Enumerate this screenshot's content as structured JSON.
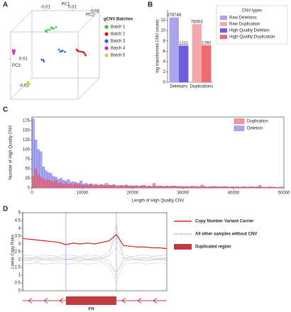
{
  "chart_data": [
    {
      "type": "scatter3d",
      "label": "A",
      "xlabel": "PC1",
      "ylabel": "PC2",
      "zlabel": "PC3",
      "legend_title": "gCNV Batches",
      "xlim": [
        -0.02,
        0.03
      ],
      "ylim": [
        -0.02,
        0.03
      ],
      "zlim": [
        -0.02,
        0.03
      ],
      "xticks": [
        -0.01,
        0.01
      ],
      "yticks": [
        0.02
      ],
      "zticks": [
        -0.01,
        0.01
      ],
      "series": [
        {
          "name": "Batch 1",
          "color": "#22cc33",
          "x": [
            -0.002,
            0,
            0.002,
            0.004,
            0.006,
            0.001,
            0.003,
            -0.001
          ],
          "y": [
            0.005,
            0.004,
            0.006,
            0.005,
            0.004,
            0.006,
            0.005,
            0.004
          ],
          "z": [
            0.023,
            0.024,
            0.025,
            0.0245,
            0.026,
            0.0235,
            0.025,
            0.0225
          ]
        },
        {
          "name": "Batch 2",
          "color": "#dd1111",
          "x": [
            0.021,
            0.023,
            0.025,
            0.027,
            0.022,
            0.026,
            0.024,
            0.028
          ],
          "y": [
            0.005,
            0.004,
            0.006,
            0.005,
            0.004,
            0.006,
            0.005,
            0.004
          ],
          "z": [
            0.009,
            0.008,
            0.007,
            0.006,
            0.0085,
            0.0065,
            0.0075,
            0.005
          ]
        },
        {
          "name": "Batch 3",
          "color": "#1f5fe0",
          "x": [
            0.008,
            0.01,
            0.012,
            0.009,
            0.011,
            -0.005,
            -0.004,
            -0.003
          ],
          "y": [
            0.005,
            0.004,
            0.006,
            0.005,
            0.004,
            0.005,
            0.006,
            0.004
          ],
          "z": [
            0.009,
            0.008,
            0.007,
            0.0075,
            0.0085,
            0.0015,
            0.001,
            0.0005
          ]
        },
        {
          "name": "Batch 4",
          "color": "#cc22cc",
          "x": [
            -0.019,
            -0.0185,
            -0.018,
            -0.019,
            -0.0175,
            -0.0185
          ],
          "y": [
            -0.018,
            -0.018,
            -0.018,
            -0.018,
            -0.018,
            -0.018
          ],
          "z": [
            0.016,
            0.015,
            0.014,
            0.0145,
            0.0155,
            0.013
          ]
        },
        {
          "name": "Batch 5",
          "color": "#b8e020",
          "x": [
            -0.015,
            -0.0145,
            -0.014,
            -0.0155,
            -0.0148
          ],
          "y": [
            0.005,
            0.005,
            0.005,
            0.005,
            0.005
          ],
          "z": [
            -0.015,
            -0.016,
            -0.017,
            -0.0155,
            -0.0165
          ]
        }
      ]
    },
    {
      "type": "bar",
      "label": "B",
      "ylabel": "log transformed CNV counts",
      "legend_title": "CNV types",
      "categories": [
        "Deletions",
        "Duplications"
      ],
      "ylim": [
        0,
        14
      ],
      "yticks": [
        0,
        2,
        4,
        6,
        8,
        10,
        12
      ],
      "series": [
        {
          "name": "Raw Deletions",
          "color": "#aaa4ee",
          "values": [
            12.54,
            null
          ],
          "value_labels": [
            "279749",
            null
          ]
        },
        {
          "name": "Raw Duplication",
          "color": "#f6a9aa",
          "values": [
            null,
            11.26
          ],
          "value_labels": [
            null,
            "78003"
          ]
        },
        {
          "name": "High-Quality Deletion",
          "color": "#6b5fe0",
          "values": [
            7.1,
            null
          ],
          "value_labels": [
            "1211",
            null
          ]
        },
        {
          "name": "High-Quality Duplication",
          "color": "#ee6b70",
          "values": [
            null,
            7.16
          ],
          "value_labels": [
            null,
            "1292"
          ]
        }
      ]
    },
    {
      "type": "histogram",
      "label": "C",
      "xlabel": "Length of High Quality CNV",
      "ylabel": "Number of High Quality CNV",
      "legend": "upper right",
      "xlim": [
        0,
        50000
      ],
      "ylim": [
        0,
        185
      ],
      "xticks": [
        0,
        10000,
        20000,
        30000,
        40000,
        50000
      ],
      "yticks": [
        0,
        25,
        50,
        75,
        100,
        125,
        150,
        175
      ],
      "bins": [
        0,
        500,
        1000,
        1500,
        2000,
        2500,
        3000,
        3500,
        4000,
        4500,
        5000,
        5500,
        6000,
        6500,
        7000,
        7500,
        8000,
        8500,
        9000,
        9500,
        10000,
        10500,
        11000,
        11500,
        12000,
        12500,
        13000,
        13500,
        14000,
        14500,
        15000,
        15500,
        16000,
        16500,
        17000,
        17500,
        18000,
        18500,
        19000,
        19500,
        20000,
        20500,
        21000,
        21500,
        22000,
        22500,
        23000,
        23500,
        24000,
        24500,
        25000,
        25500,
        26000,
        26500,
        27000,
        27500,
        28000,
        28500,
        29000,
        29500,
        30000,
        30500,
        31000,
        31500,
        32000,
        32500,
        33000,
        33500,
        34000,
        34500,
        35000,
        35500,
        36000,
        36500,
        37000,
        37500,
        38000,
        38500,
        39000,
        39500,
        40000,
        40500,
        41000,
        41500,
        42000,
        42500,
        43000,
        43500,
        44000,
        44500,
        45000,
        45500,
        46000,
        46500,
        47000,
        47500,
        48000,
        48500,
        49000,
        49500,
        50000
      ],
      "series": [
        {
          "name": "Duplication",
          "color": "#e8505b",
          "values": [
            30,
            50,
            35,
            28,
            25,
            20,
            22,
            18,
            15,
            20,
            12,
            14,
            10,
            12,
            9,
            11,
            8,
            10,
            9,
            8,
            7,
            8,
            6,
            9,
            5,
            7,
            6,
            8,
            5,
            12,
            6,
            5,
            7,
            4,
            6,
            5,
            4,
            6,
            5,
            4,
            4,
            5,
            3,
            6,
            4,
            3,
            5,
            4,
            12,
            3,
            4,
            5,
            3,
            4,
            3,
            5,
            4,
            3,
            4,
            3,
            3,
            4,
            2,
            3,
            4,
            3,
            2,
            8,
            3,
            2,
            3,
            2,
            4,
            3,
            2,
            3,
            2,
            3,
            2,
            3,
            2,
            3,
            2,
            2,
            3,
            2,
            2,
            3,
            2,
            2,
            7,
            2,
            2,
            1,
            2,
            2,
            2,
            1,
            2,
            2
          ]
        },
        {
          "name": "Deletion",
          "color": "#7070ea",
          "values": [
            180,
            125,
            100,
            95,
            55,
            45,
            40,
            38,
            30,
            28,
            22,
            25,
            20,
            18,
            22,
            15,
            16,
            14,
            12,
            18,
            10,
            12,
            9,
            11,
            8,
            10,
            7,
            9,
            8,
            6,
            8,
            7,
            9,
            6,
            5,
            7,
            6,
            8,
            5,
            6,
            5,
            6,
            4,
            5,
            7,
            4,
            5,
            3,
            6,
            4,
            5,
            4,
            3,
            5,
            4,
            3,
            5,
            4,
            3,
            4,
            3,
            4,
            3,
            5,
            2,
            4,
            3,
            3,
            4,
            2,
            3,
            4,
            2,
            3,
            3,
            2,
            4,
            3,
            2,
            3,
            2,
            3,
            2,
            3,
            2,
            2,
            3,
            2,
            2,
            3,
            2,
            2,
            1,
            2,
            3,
            2,
            2,
            1,
            2,
            2
          ]
        }
      ]
    },
    {
      "type": "line",
      "label": "D",
      "ylabel": "Linear Copy Ratio",
      "gene": "FH",
      "x": [
        0,
        1,
        2,
        3,
        4,
        5,
        6,
        7,
        8,
        9,
        10,
        11,
        12,
        13,
        14,
        15,
        16,
        17,
        18,
        19,
        20
      ],
      "xlim": [
        0,
        20
      ],
      "ylim": [
        0,
        5
      ],
      "yticks": [
        0,
        0.5,
        1,
        1.5,
        2,
        2.5,
        3,
        3.5,
        4,
        4.5,
        5
      ],
      "series": [
        {
          "name": "Copy Number Variant Carrier",
          "color": "#d62020",
          "values": [
            3.35,
            3.3,
            3.25,
            3.2,
            3.15,
            3.1,
            2.95,
            3.05,
            3.0,
            3.05,
            3.0,
            3.1,
            3.2,
            3.6,
            2.9,
            2.85,
            2.8,
            2.8,
            2.75,
            2.75,
            2.7
          ]
        },
        {
          "name": "All other samples without CNV",
          "color": "#666666",
          "lines": [
            [
              2.1,
              2.05,
              2.1,
              2.0,
              2.05,
              2.1,
              2.0,
              2.05,
              2.1,
              2.0,
              2.05,
              2.1,
              2.2,
              2.8,
              2.1,
              2.05,
              2.0,
              2.1,
              2.05,
              2.0,
              2.1
            ],
            [
              1.9,
              1.95,
              1.9,
              2.0,
              1.95,
              1.9,
              2.0,
              1.95,
              1.9,
              2.0,
              1.95,
              1.9,
              1.7,
              1.2,
              1.9,
              1.95,
              2.0,
              1.9,
              1.95,
              2.0,
              1.9
            ],
            [
              2.3,
              2.25,
              2.2,
              2.3,
              2.25,
              2.2,
              2.3,
              2.25,
              2.2,
              2.3,
              2.25,
              2.2,
              2.5,
              3.4,
              2.3,
              2.2,
              2.25,
              2.3,
              2.2,
              2.25,
              2.3
            ],
            [
              1.7,
              1.75,
              1.8,
              1.7,
              1.75,
              1.8,
              1.7,
              1.75,
              1.8,
              1.7,
              1.75,
              1.8,
              1.5,
              0.6,
              1.7,
              1.75,
              1.8,
              1.7,
              1.75,
              1.8,
              1.7
            ],
            [
              2.0,
              2.0,
              2.05,
              2.0,
              1.95,
              2.0,
              2.05,
              2.0,
              1.95,
              2.0,
              2.0,
              2.05,
              2.3,
              4.2,
              2.0,
              2.05,
              2.0,
              1.95,
              2.0,
              2.05,
              2.0
            ],
            [
              2.15,
              2.1,
              2.1,
              2.15,
              2.1,
              2.1,
              2.15,
              2.1,
              2.1,
              2.15,
              2.1,
              2.1,
              1.9,
              1.0,
              2.1,
              2.15,
              2.1,
              2.1,
              2.15,
              2.1,
              2.1
            ]
          ]
        }
      ],
      "region": {
        "name": "Duplicated region",
        "color": "#c0393f",
        "x": [
          6,
          13
        ]
      }
    }
  ]
}
